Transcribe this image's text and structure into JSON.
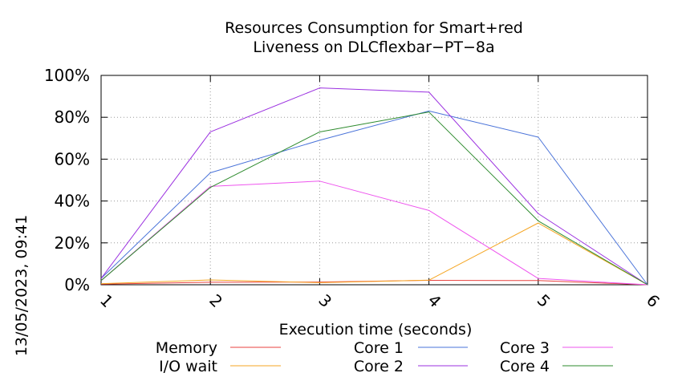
{
  "chart_data": {
    "type": "line",
    "title": [
      "Resources Consumption for Smart+red",
      "Liveness on DLCflexbar−PT−8a"
    ],
    "xlabel": "Execution time (seconds)",
    "ylabel": "",
    "side_note": "13/05/2023, 09:41",
    "x": [
      1,
      2,
      3,
      4,
      5,
      6
    ],
    "xlim": [
      1,
      6
    ],
    "ylim": [
      0,
      100
    ],
    "x_ticks": [
      "1",
      "2",
      "3",
      "4",
      "5",
      "6"
    ],
    "y_ticks": [
      {
        "value": 0,
        "label": "0%"
      },
      {
        "value": 20,
        "label": "20%"
      },
      {
        "value": 40,
        "label": "40%"
      },
      {
        "value": 60,
        "label": "60%"
      },
      {
        "value": 80,
        "label": "80%"
      },
      {
        "value": 100,
        "label": "100%"
      }
    ],
    "grid": true,
    "legend_position": "bottom",
    "series": [
      {
        "name": "Memory",
        "color": "#e8423f",
        "values": [
          0.3,
          1.2,
          1.3,
          2.1,
          2.0,
          0
        ]
      },
      {
        "name": "I/O wait",
        "color": "#f5a623",
        "values": [
          0.5,
          2.3,
          1.0,
          2.2,
          29.5,
          0
        ]
      },
      {
        "name": "Core 1",
        "color": "#4a73d9",
        "values": [
          3.0,
          53.5,
          69.0,
          83.0,
          70.5,
          0
        ]
      },
      {
        "name": "Core 2",
        "color": "#9b30e0",
        "values": [
          3.0,
          73.0,
          94.0,
          92.0,
          34.0,
          0
        ]
      },
      {
        "name": "Core 3",
        "color": "#ee55ee",
        "values": [
          2.0,
          47.0,
          49.5,
          35.5,
          3.0,
          0
        ]
      },
      {
        "name": "Core 4",
        "color": "#2e8b2e",
        "values": [
          2.0,
          46.5,
          73.0,
          82.5,
          30.5,
          0
        ]
      }
    ]
  }
}
